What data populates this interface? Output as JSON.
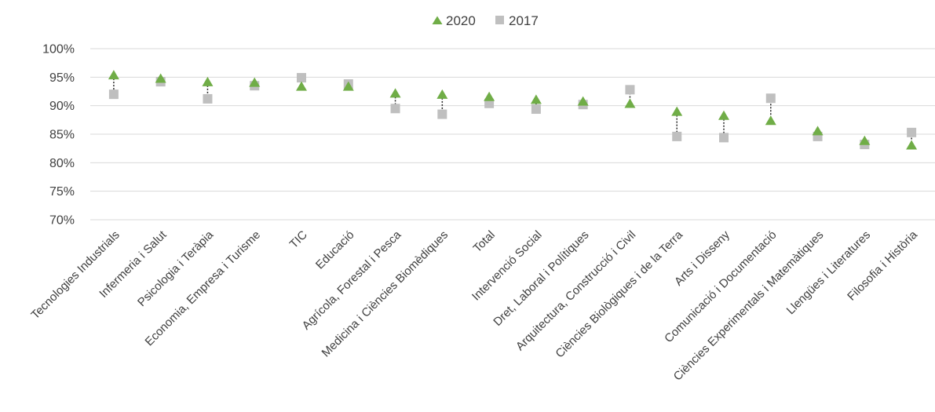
{
  "chart_data": {
    "type": "scatter",
    "title": "",
    "xlabel": "",
    "ylabel": "",
    "ylim": [
      70,
      100
    ],
    "yticks": [
      "70%",
      "75%",
      "80%",
      "85%",
      "90%",
      "95%",
      "100%"
    ],
    "grid": true,
    "legend_position": "top-center",
    "categories": [
      "Tecnologies Industrials",
      "Infermeria i Salut",
      "Psicologia i Teràpia",
      "Economia, Empresa i Turisme",
      "TIC",
      "Educació",
      "Agrícola, Forestal i Pesca",
      "Medicina i Ciències Biomèdiques",
      "Total",
      "Intervenció Social",
      "Dret, Laboral i Polítiques",
      "Arquitectura, Construcció i Civil",
      "Ciències Biològiques i de la Terra",
      "Arts i Disseny",
      "Comunicació i Documentació",
      "Ciències Experimentals i Matemàtiques",
      "Llengües i Literatures",
      "Filosofia i Història"
    ],
    "series": [
      {
        "name": "2020",
        "marker": "triangle",
        "color": "#70AD47",
        "values": [
          95.3,
          94.7,
          94.1,
          94.0,
          93.3,
          93.3,
          92.1,
          91.9,
          91.5,
          91.0,
          90.7,
          90.3,
          88.9,
          88.2,
          87.3,
          85.5,
          83.8,
          83.0
        ]
      },
      {
        "name": "2017",
        "marker": "square",
        "color": "#BFBFBF",
        "values": [
          92.0,
          94.2,
          91.2,
          93.5,
          94.9,
          93.8,
          89.5,
          88.5,
          90.4,
          89.4,
          90.2,
          92.8,
          84.6,
          84.4,
          91.3,
          84.6,
          83.2,
          85.3
        ]
      }
    ]
  }
}
